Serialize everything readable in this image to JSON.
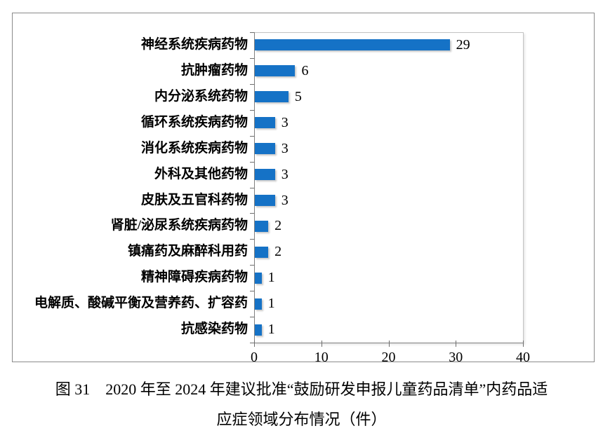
{
  "figure": {
    "caption": {
      "line1": "图 31　2020 年至 2024 年建议批准“鼓励研发申报儿童药品清单”内药品适",
      "line2": "应症领域分布情况（件）"
    }
  },
  "colors": {
    "bar": "#1572c6",
    "axis_line": "#7f7f7f",
    "tick": "#6e6e6e",
    "plot_border": "#c3c3c3",
    "figure_border": "#8a8a8a",
    "text": "#000000"
  },
  "chart_data": {
    "type": "bar",
    "orientation": "horizontal",
    "title": "",
    "xlabel": "",
    "ylabel": "",
    "categories": [
      "神经系统疾病药物",
      "抗肿瘤药物",
      "内分泌系统药物",
      "循环系统疾病药物",
      "消化系统疾病药物",
      "外科及其他药物",
      "皮肤及五官科药物",
      "肾脏/泌尿系统疾病药物",
      "镇痛药及麻醉科用药",
      "精神障碍疾病药物",
      "电解质、酸碱平衡及营养药、扩容药",
      "抗感染药物"
    ],
    "values": [
      29,
      6,
      5,
      3,
      3,
      3,
      3,
      2,
      2,
      1,
      1,
      1
    ],
    "data_labels": [
      29,
      6,
      5,
      3,
      3,
      3,
      3,
      2,
      2,
      1,
      1,
      1
    ],
    "xlim": [
      0,
      40
    ],
    "xticks": [
      0,
      10,
      20,
      30,
      40
    ],
    "grid": false,
    "legend": null,
    "unit": "件"
  }
}
